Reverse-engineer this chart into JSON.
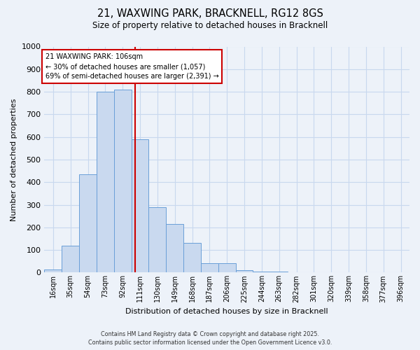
{
  "title_line1": "21, WAXWING PARK, BRACKNELL, RG12 8GS",
  "title_line2": "Size of property relative to detached houses in Bracknell",
  "xlabel": "Distribution of detached houses by size in Bracknell",
  "ylabel": "Number of detached properties",
  "bin_labels": [
    "16sqm",
    "35sqm",
    "54sqm",
    "73sqm",
    "92sqm",
    "111sqm",
    "130sqm",
    "149sqm",
    "168sqm",
    "187sqm",
    "206sqm",
    "225sqm",
    "244sqm",
    "263sqm",
    "282sqm",
    "301sqm",
    "320sqm",
    "339sqm",
    "358sqm",
    "377sqm",
    "396sqm"
  ],
  "bar_heights": [
    15,
    120,
    435,
    800,
    810,
    590,
    290,
    215,
    130,
    42,
    40,
    10,
    5,
    3,
    2,
    1,
    1,
    1,
    1,
    1,
    1
  ],
  "bar_color": "#c9d9ef",
  "bar_edge_color": "#6a9fd8",
  "annotation_title": "21 WAXWING PARK: 106sqm",
  "annotation_line2": "← 30% of detached houses are smaller (1,057)",
  "annotation_line3": "69% of semi-detached houses are larger (2,391) →",
  "annotation_box_facecolor": "#ffffff",
  "annotation_box_edgecolor": "#cc0000",
  "vline_x_label_idx": 4,
  "vline_color": "#cc0000",
  "bin_width": 19,
  "ylim": [
    0,
    1000
  ],
  "yticks": [
    0,
    100,
    200,
    300,
    400,
    500,
    600,
    700,
    800,
    900,
    1000
  ],
  "grid_color": "#c8d8ee",
  "bg_color": "#edf2f9",
  "footer_line1": "Contains HM Land Registry data © Crown copyright and database right 2025.",
  "footer_line2": "Contains public sector information licensed under the Open Government Licence v3.0."
}
